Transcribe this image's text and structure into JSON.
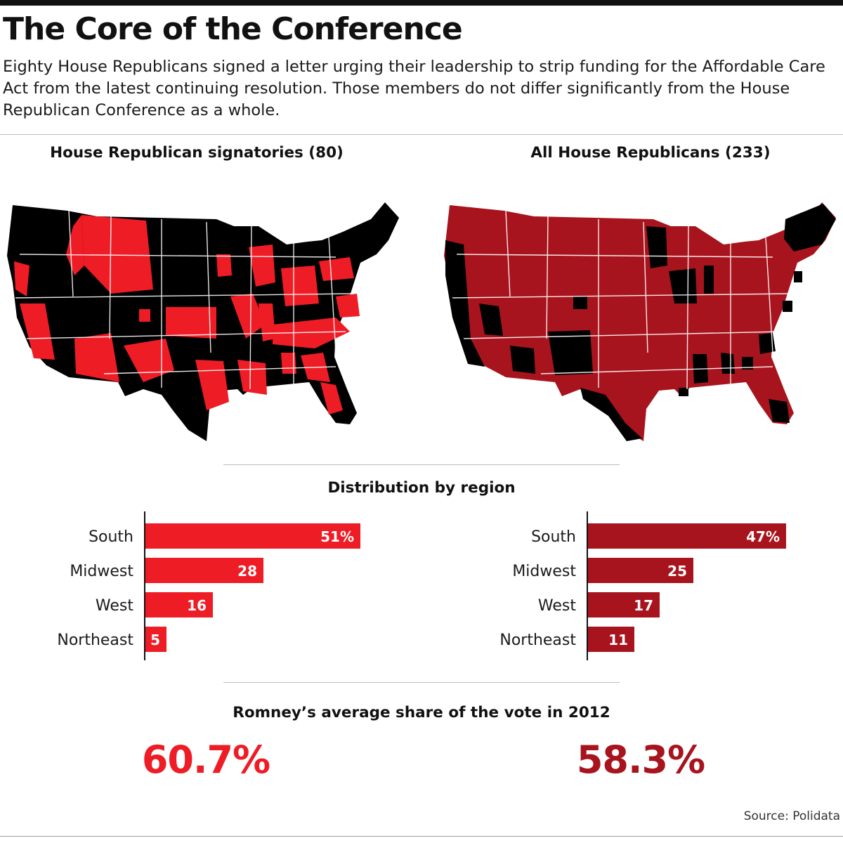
{
  "title": "The Core of the Conference",
  "subtitle": "Eighty House Republicans signed a letter urging their leadership to strip funding for the Affordable Care Act from the latest continuing resolution. Those members do not differ significantly from the House Republican Conference as a whole.",
  "panels": {
    "left_title": "House Republican signatories (80)",
    "right_title": "All House Republicans (233)"
  },
  "colors": {
    "signatories": "#ee1c25",
    "all_republicans": "#a8141e",
    "map_background": "#000000",
    "map_borders": "#ffffff"
  },
  "distribution_title": "Distribution by region",
  "chart_data": [
    {
      "type": "bar",
      "orientation": "horizontal",
      "categories": [
        "South",
        "Midwest",
        "West",
        "Northeast"
      ],
      "values": [
        51,
        28,
        16,
        5
      ],
      "value_labels": [
        "51%",
        "28",
        "16",
        "5"
      ],
      "xlim": [
        0,
        60
      ]
    },
    {
      "type": "bar",
      "orientation": "horizontal",
      "categories": [
        "South",
        "Midwest",
        "West",
        "Northeast"
      ],
      "values": [
        47,
        25,
        17,
        11
      ],
      "value_labels": [
        "47%",
        "25",
        "17",
        "11"
      ],
      "xlim": [
        0,
        60
      ]
    }
  ],
  "romney_title": "Romney’s average share of the vote in 2012",
  "romney": {
    "signatories": "60.7%",
    "all_republicans": "58.3%"
  },
  "source": "Source: Polidata"
}
